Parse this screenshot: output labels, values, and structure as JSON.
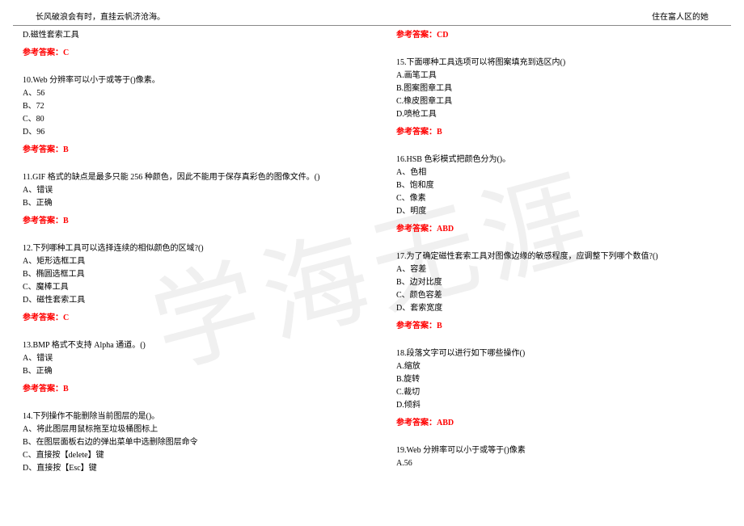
{
  "watermark_text": "学海无涯",
  "header": {
    "left": "长风破浪会有时，直挂云帆济沧海。",
    "right": "住在富人区的她"
  },
  "colors": {
    "answer_color": "#ff0000",
    "text_color": "#000000",
    "watermark_color": "#f0f0f0",
    "border_color": "#888888"
  },
  "answer_label": "参考答案：",
  "left_column": {
    "top_option": "D.磁性套索工具",
    "top_answer": "C",
    "questions": [
      {
        "q": "10.Web 分辨率可以小于或等于()像素。",
        "opts": [
          "A、56",
          "B、72",
          "C、80",
          "D、96"
        ],
        "ans": "B"
      },
      {
        "q": "11.GIF 格式的缺点是最多只能 256 种颜色，因此不能用于保存真彩色的图像文件。()",
        "opts": [
          "A、错误",
          "B、正确"
        ],
        "ans": "B"
      },
      {
        "q": "12.下列哪种工具可以选择连续的相似颜色的区域?()",
        "opts": [
          "A、矩形选框工具",
          "B、椭圆选框工具",
          "C、魔棒工具",
          "D、磁性套索工具"
        ],
        "ans": "C"
      },
      {
        "q": "13.BMP 格式不支持 Alpha 通道。()",
        "opts": [
          "A、错误",
          "B、正确"
        ],
        "ans": "B"
      },
      {
        "q": "14.下列操作不能删除当前图层的是()。",
        "opts": [
          "A、将此图层用鼠标拖至垃圾桶图标上",
          "B、在图层面板右边的弹出菜单中选删除图层命令",
          "C、直接按【delete】键",
          "D、直接按【Esc】键"
        ],
        "ans": null
      }
    ]
  },
  "right_column": {
    "top_answer": "CD",
    "questions": [
      {
        "q": "15.下面哪种工具选项可以将图案填充到选区内()",
        "opts": [
          "A.画笔工具",
          "B.图案图章工具",
          "C.橡皮图章工具",
          "D.喷枪工具"
        ],
        "ans": "B"
      },
      {
        "q": "16.HSB 色彩模式把颜色分为()。",
        "opts": [
          "A、色相",
          "B、饱和度",
          "C、像素",
          "D、明度"
        ],
        "ans": "ABD"
      },
      {
        "q": "17.为了确定磁性套索工具对图像边缘的敏感程度，应调整下列哪个数值?()",
        "opts": [
          "A、容差",
          "B、边对比度",
          "C、颜色容差",
          "D、套索宽度"
        ],
        "ans": "B"
      },
      {
        "q": "18.段落文字可以进行如下哪些操作()",
        "opts": [
          "A.缩放",
          "B.旋转",
          "C.裁切",
          "D.倾斜"
        ],
        "ans": "ABD"
      },
      {
        "q": "19.Web 分辨率可以小于或等于()像素",
        "opts": [
          "A.56"
        ],
        "ans": null
      }
    ]
  }
}
